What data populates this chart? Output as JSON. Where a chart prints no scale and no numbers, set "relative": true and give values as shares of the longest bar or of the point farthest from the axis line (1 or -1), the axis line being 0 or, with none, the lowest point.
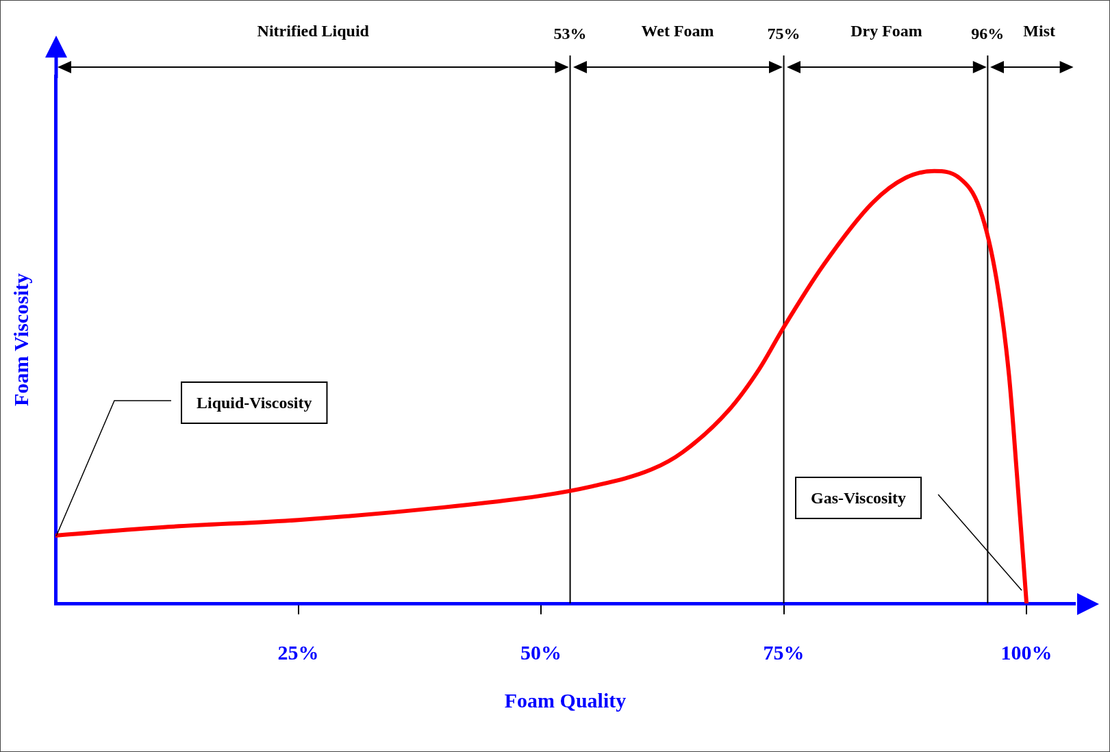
{
  "chart_data": {
    "type": "line",
    "relative": true,
    "xlabel": "Foam Quality",
    "ylabel": "Foam Viscosity",
    "x": [
      0,
      11.6,
      25,
      39.9,
      50,
      55.1,
      61.4,
      64.6,
      69.3,
      72.5,
      75,
      79.1,
      84.2,
      87.5,
      90.5,
      93.1,
      95.2,
      96.9,
      98.2,
      99.0,
      100
    ],
    "series": [
      {
        "color": "#ff0000",
        "values": [
          0.157,
          0.177,
          0.193,
          0.222,
          0.249,
          0.27,
          0.31,
          0.35,
          0.446,
          0.543,
          0.639,
          0.783,
          0.928,
          0.984,
          1.0,
          0.984,
          0.912,
          0.751,
          0.527,
          0.302,
          0
        ]
      }
    ],
    "xlim": [
      0,
      105
    ],
    "xticks": [
      {
        "value": 25,
        "label": "25%"
      },
      {
        "value": 50,
        "label": "50%"
      },
      {
        "value": 75,
        "label": "75%"
      },
      {
        "value": 100,
        "label": "100%"
      }
    ],
    "ref_lines": [
      {
        "axis": "x",
        "value": 53,
        "label": "53%",
        "color": "#000000"
      },
      {
        "axis": "x",
        "value": 75,
        "label": "75%",
        "color": "#000000"
      },
      {
        "axis": "x",
        "value": 96,
        "label": "96%",
        "color": "#000000"
      }
    ],
    "annotations": [
      "Nitrified Liquid",
      "Wet Foam",
      "Dry Foam",
      "Mist",
      "Liquid-Viscosity",
      "Gas-Viscosity"
    ],
    "grid": false,
    "legend": false,
    "marker": "none",
    "line_style": "solid"
  }
}
